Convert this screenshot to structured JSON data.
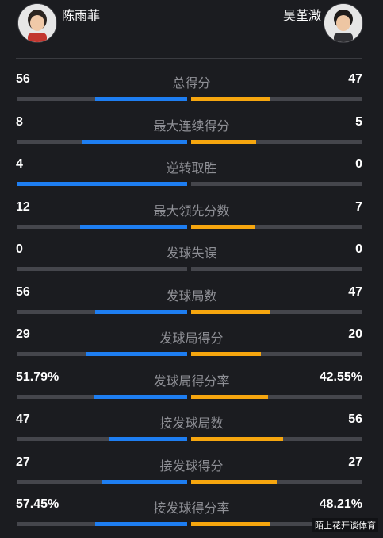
{
  "players": {
    "left": {
      "name": "陈雨菲",
      "avatar_icon": "player-photo"
    },
    "right": {
      "name": "吴堇溦",
      "avatar_icon": "player-photo"
    }
  },
  "colors": {
    "left_accent": "#1e7ef2",
    "right_accent": "#f6a60f",
    "track": "#45464c",
    "background": "#1b1c20"
  },
  "stats": [
    {
      "label": "总得分",
      "left": "56",
      "right": "47",
      "left_share": 0.54,
      "right_share": 0.46
    },
    {
      "label": "最大连续得分",
      "left": "8",
      "right": "5",
      "left_share": 0.62,
      "right_share": 0.38
    },
    {
      "label": "逆转取胜",
      "left": "4",
      "right": "0",
      "left_share": 1.0,
      "right_share": 0.0
    },
    {
      "label": "最大领先分数",
      "left": "12",
      "right": "7",
      "left_share": 0.63,
      "right_share": 0.37
    },
    {
      "label": "发球失误",
      "left": "0",
      "right": "0",
      "left_share": 0.0,
      "right_share": 0.0
    },
    {
      "label": "发球局数",
      "left": "56",
      "right": "47",
      "left_share": 0.54,
      "right_share": 0.46
    },
    {
      "label": "发球局得分",
      "left": "29",
      "right": "20",
      "left_share": 0.59,
      "right_share": 0.41
    },
    {
      "label": "发球局得分率",
      "left": "51.79%",
      "right": "42.55%",
      "left_share": 0.55,
      "right_share": 0.45
    },
    {
      "label": "接发球局数",
      "left": "47",
      "right": "56",
      "left_share": 0.46,
      "right_share": 0.54
    },
    {
      "label": "接发球得分",
      "left": "27",
      "right": "27",
      "left_share": 0.5,
      "right_share": 0.5
    },
    {
      "label": "接发球得分率",
      "left": "57.45%",
      "right": "48.21%",
      "left_share": 0.54,
      "right_share": 0.46
    }
  ],
  "watermark": "陌上花开谈体育"
}
